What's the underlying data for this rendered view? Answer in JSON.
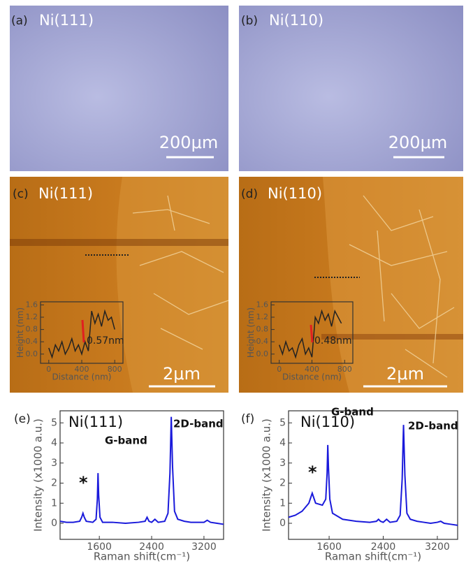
{
  "panels": [
    {
      "label": "(a)",
      "title": "Ni(111)",
      "scale": "200μm"
    },
    {
      "label": "(b)",
      "title": "Ni(110)",
      "scale": "200μm"
    },
    {
      "label": "(c)",
      "title": "Ni(111)",
      "scale": "2μm"
    },
    {
      "label": "(d)",
      "title": "Ni(110)",
      "scale": "2μm"
    }
  ],
  "chart_data": [
    {
      "type": "line",
      "xlabel": "Distance (nm)",
      "ylabel": "Height (nm)",
      "annotation": "0.57nm",
      "color": "#222222",
      "x": [
        0,
        40,
        80,
        120,
        160,
        200,
        240,
        280,
        320,
        360,
        400,
        440,
        480,
        520,
        560,
        600,
        640,
        680,
        720,
        760,
        800
      ],
      "values": [
        0.2,
        -0.1,
        0.3,
        0.1,
        0.4,
        0,
        0.2,
        0.5,
        0.1,
        0.3,
        0,
        0.4,
        0.1,
        1.4,
        1.0,
        1.3,
        0.9,
        1.4,
        1.1,
        1.2,
        0.8
      ],
      "xlim": [
        -100,
        900
      ],
      "ylim": [
        -0.3,
        1.7
      ],
      "xticks": [
        0,
        400,
        800
      ],
      "yticks": [
        {
          "value": 0,
          "label": "0.0"
        },
        0.4,
        0.8,
        1.2,
        1.6
      ]
    },
    {
      "type": "line",
      "xlabel": "Distance (nm)",
      "ylabel": "Height (nm)",
      "annotation": "0.48nm",
      "color": "#222222",
      "x": [
        0,
        40,
        80,
        120,
        160,
        200,
        240,
        280,
        320,
        360,
        400,
        440,
        480,
        520,
        560,
        600,
        640,
        680,
        720,
        760
      ],
      "values": [
        0.3,
        0,
        0.4,
        0.1,
        0.2,
        -0.1,
        0.3,
        0.5,
        0,
        0.2,
        -0.1,
        1.2,
        1.0,
        1.4,
        1.1,
        1.3,
        0.9,
        1.4,
        1.2,
        1.0
      ],
      "xlim": [
        -100,
        900
      ],
      "ylim": [
        -0.3,
        1.7
      ],
      "xticks": [
        0,
        400,
        800
      ],
      "yticks": [
        {
          "value": 0,
          "label": "0.0"
        },
        0.4,
        0.8,
        1.2,
        1.6
      ]
    },
    {
      "type": "line",
      "panel": "(e)",
      "title": "Ni(111)",
      "xlabel": "Raman shift(cm⁻¹)",
      "ylabel": "Intensity (x1000 a.u.)",
      "color": "#1a1adb",
      "annotations": [
        "*",
        "G-band",
        "2D-band"
      ],
      "x": [
        1000,
        1100,
        1200,
        1300,
        1330,
        1350,
        1370,
        1400,
        1500,
        1550,
        1570,
        1580,
        1590,
        1610,
        1650,
        1800,
        2000,
        2200,
        2300,
        2330,
        2360,
        2400,
        2450,
        2500,
        2600,
        2650,
        2680,
        2700,
        2720,
        2750,
        2800,
        2900,
        3000,
        3100,
        3200,
        3250,
        3300,
        3400,
        3500
      ],
      "values": [
        0.1,
        0.05,
        0.05,
        0.1,
        0.3,
        0.5,
        0.3,
        0.1,
        0.05,
        0.2,
        1.2,
        2.5,
        1.4,
        0.3,
        0.05,
        0.05,
        0,
        0.05,
        0.1,
        0.3,
        0.1,
        0.05,
        0.2,
        0.05,
        0.1,
        0.5,
        2.5,
        5.3,
        2.8,
        0.6,
        0.2,
        0.1,
        0.05,
        0.05,
        0.05,
        0.15,
        0.05,
        0,
        -0.05
      ],
      "xlim": [
        1000,
        3500
      ],
      "ylim": [
        -0.8,
        5.6
      ],
      "xticks": [
        1600,
        2400,
        3200
      ],
      "yticks": [
        0,
        1,
        2,
        3,
        4,
        5
      ]
    },
    {
      "type": "line",
      "panel": "(f)",
      "title": "Ni(110)",
      "xlabel": "Raman shift(cm⁻¹)",
      "ylabel": "Intensity (x1000 a.u.)",
      "color": "#1a1adb",
      "annotations": [
        "*",
        "G-band",
        "2D-band"
      ],
      "x": [
        1000,
        1100,
        1200,
        1300,
        1330,
        1350,
        1370,
        1400,
        1500,
        1550,
        1570,
        1580,
        1590,
        1610,
        1650,
        1800,
        2000,
        2200,
        2300,
        2330,
        2360,
        2400,
        2450,
        2500,
        2600,
        2650,
        2680,
        2700,
        2720,
        2750,
        2800,
        2900,
        3000,
        3100,
        3200,
        3250,
        3300,
        3400,
        3500
      ],
      "values": [
        0.3,
        0.4,
        0.6,
        1.0,
        1.3,
        1.5,
        1.3,
        1.0,
        0.9,
        1.2,
        2.5,
        3.9,
        2.8,
        1.2,
        0.5,
        0.2,
        0.1,
        0.05,
        0.1,
        0.2,
        0.1,
        0.05,
        0.2,
        0.05,
        0.1,
        0.4,
        2.2,
        4.9,
        2.4,
        0.5,
        0.2,
        0.1,
        0.05,
        0,
        0.05,
        0.1,
        0,
        -0.05,
        -0.1
      ],
      "xlim": [
        1000,
        3500
      ],
      "ylim": [
        -0.8,
        5.6
      ],
      "xticks": [
        1600,
        2400,
        3200
      ],
      "yticks": [
        0,
        1,
        2,
        3,
        4,
        5
      ]
    }
  ]
}
